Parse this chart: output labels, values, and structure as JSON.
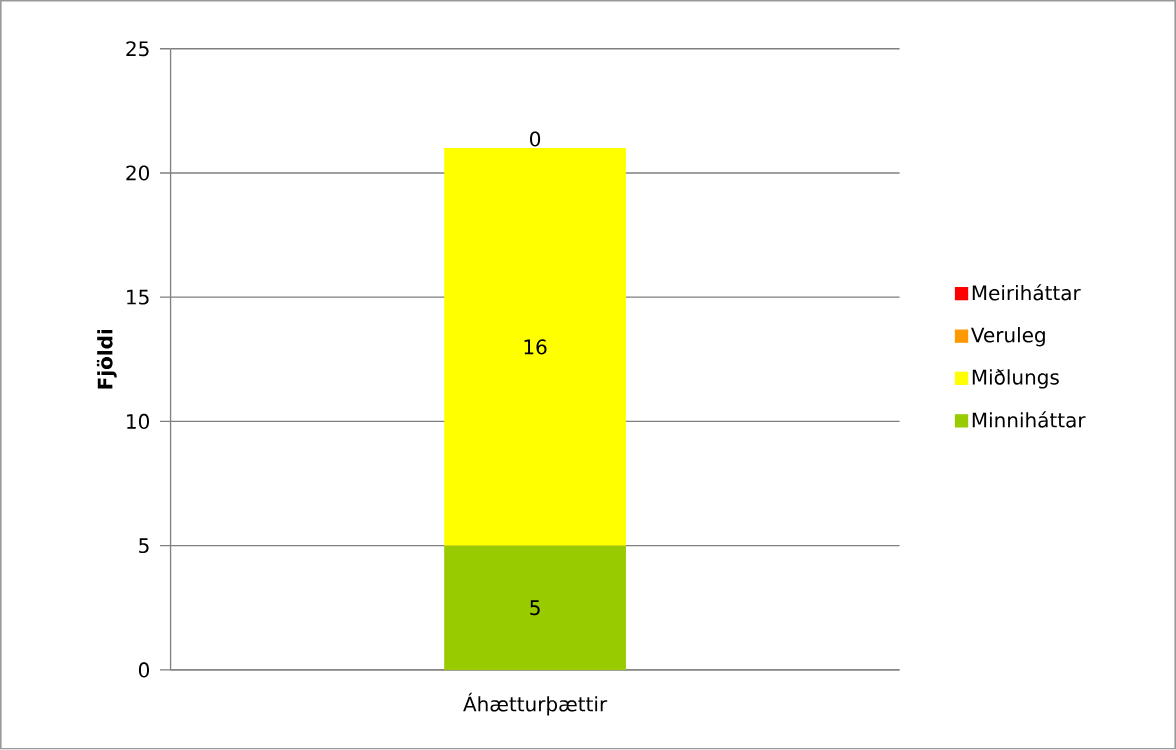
{
  "chart_data": {
    "type": "bar",
    "stacked": true,
    "ylabel": "Fjöldi",
    "categories": [
      "Áhætturþættir"
    ],
    "ylim": [
      0,
      25
    ],
    "yticks": [
      0,
      5,
      10,
      15,
      20,
      25
    ],
    "grid": "y",
    "legend": "right",
    "series": [
      {
        "name": "Minniháttar",
        "color": "#99cc00",
        "values": [
          5
        ],
        "value_labels": [
          "5"
        ]
      },
      {
        "name": "Miðlungs",
        "color": "#ffff00",
        "values": [
          16
        ],
        "value_labels": [
          "16"
        ]
      },
      {
        "name": "Veruleg",
        "color": "#ff9900",
        "values": [
          0
        ],
        "value_labels": [
          "0"
        ]
      },
      {
        "name": "Meiriháttar",
        "color": "#ff0000",
        "values": [
          0
        ],
        "value_labels": [
          null
        ]
      }
    ]
  }
}
